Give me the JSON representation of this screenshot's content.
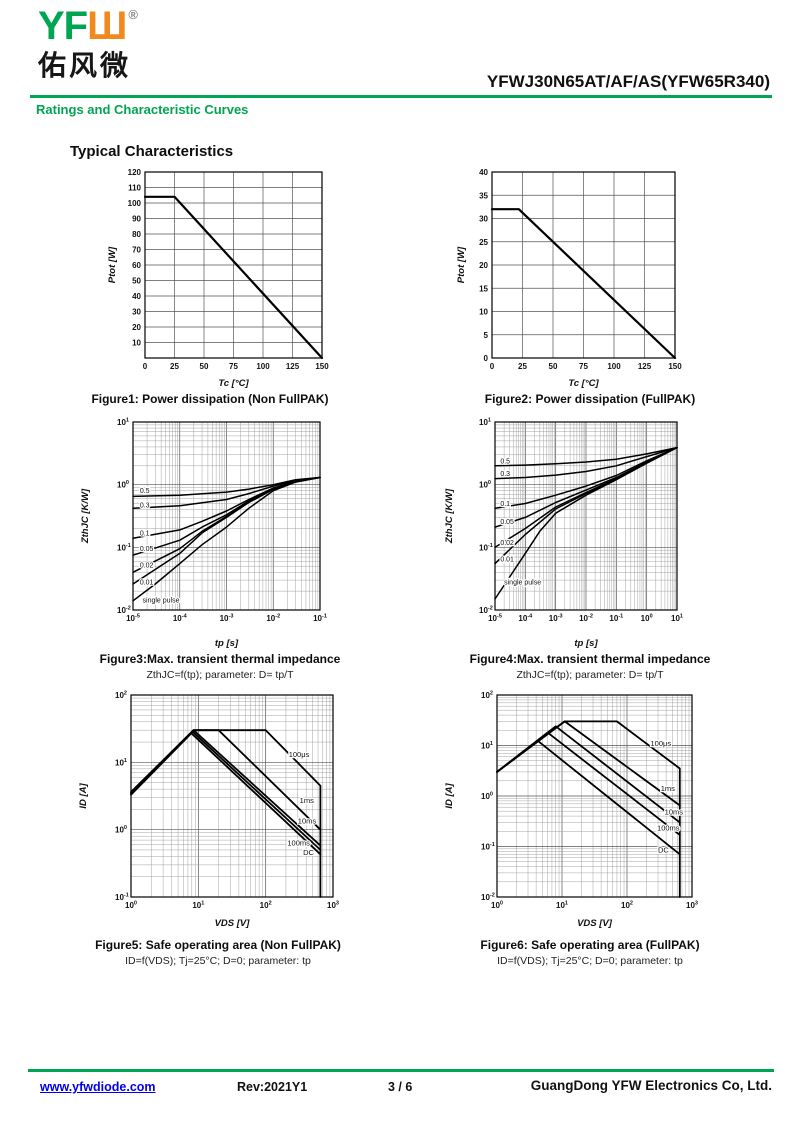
{
  "header": {
    "logo_green": "YF",
    "logo_orange": "Ш",
    "registered_mark": "®",
    "logo_chinese": "佑风微",
    "part_number": "YFWJ30N65AT/AF/AS(YFW65R340)",
    "section": "Ratings and Characteristic Curves"
  },
  "page_heading": "Typical Characteristics",
  "colors": {
    "green": "#00A551",
    "orange": "#F08A1E",
    "link_blue": "#0000EE",
    "curve": "#000000"
  },
  "footer": {
    "website": "www.yfwdiode.com",
    "revision": "Rev:2021Y1",
    "page": "3 / 6",
    "company": "GuangDong YFW Electronics Co, Ltd."
  },
  "chart_data": [
    {
      "type": "line",
      "caption": "Figure1: Power dissipation (Non FullPAK)",
      "x": {
        "scale": "linear",
        "label": "Tc [°C]",
        "min": 0,
        "max": 150,
        "ticks": [
          0,
          25,
          50,
          75,
          100,
          125,
          150
        ]
      },
      "y": {
        "scale": "linear",
        "label": "Ptot [W]",
        "min": 0,
        "max": 120,
        "ticks": [
          10,
          20,
          30,
          40,
          50,
          60,
          70,
          80,
          90,
          100,
          110,
          120
        ]
      },
      "series": [
        {
          "name": "Ptot",
          "points": [
            [
              0,
              104
            ],
            [
              25,
              104
            ],
            [
              150,
              0
            ]
          ]
        }
      ],
      "annotations": []
    },
    {
      "type": "line",
      "caption": "Figure2: Power dissipation (FullPAK)",
      "x": {
        "scale": "linear",
        "label": "Tc [°C]",
        "min": 0,
        "max": 150,
        "ticks": [
          0,
          25,
          50,
          75,
          100,
          125,
          150
        ]
      },
      "y": {
        "scale": "linear",
        "label": "Ptot [W]",
        "min": 0,
        "max": 40,
        "ticks": [
          0,
          5,
          10,
          15,
          20,
          25,
          30,
          35,
          40
        ]
      },
      "series": [
        {
          "name": "Ptot",
          "points": [
            [
              0,
              32
            ],
            [
              22,
              32
            ],
            [
              150,
              0
            ]
          ]
        }
      ],
      "annotations": []
    },
    {
      "type": "line",
      "caption": "Figure3:Max. transient thermal impedance",
      "subtitle": "ZthJC=f(tp); parameter: D= tp/T",
      "x": {
        "scale": "log",
        "label": "tp [s]",
        "min_exp": -5,
        "max_exp": -1
      },
      "y": {
        "scale": "log",
        "label": "ZthJC [K/W]",
        "min_exp": -2,
        "max_exp": 1
      },
      "series": [
        {
          "name": "0.5",
          "points": [
            [
              1e-05,
              0.65
            ],
            [
              0.0001,
              0.68
            ],
            [
              0.001,
              0.76
            ],
            [
              0.003,
              0.85
            ],
            [
              0.01,
              1.0
            ],
            [
              0.03,
              1.2
            ],
            [
              0.1,
              1.3
            ]
          ]
        },
        {
          "name": "0.3",
          "points": [
            [
              1e-05,
              0.42
            ],
            [
              0.0001,
              0.46
            ],
            [
              0.001,
              0.58
            ],
            [
              0.003,
              0.72
            ],
            [
              0.01,
              0.95
            ],
            [
              0.03,
              1.18
            ],
            [
              0.1,
              1.3
            ]
          ]
        },
        {
          "name": "0.1",
          "points": [
            [
              1e-05,
              0.14
            ],
            [
              0.0001,
              0.19
            ],
            [
              0.0003,
              0.26
            ],
            [
              0.001,
              0.38
            ],
            [
              0.003,
              0.58
            ],
            [
              0.01,
              0.88
            ],
            [
              0.03,
              1.15
            ],
            [
              0.1,
              1.3
            ]
          ]
        },
        {
          "name": "0.05",
          "points": [
            [
              1e-05,
              0.075
            ],
            [
              0.0001,
              0.13
            ],
            [
              0.0003,
              0.21
            ],
            [
              0.001,
              0.33
            ],
            [
              0.003,
              0.55
            ],
            [
              0.01,
              0.86
            ],
            [
              0.03,
              1.15
            ],
            [
              0.1,
              1.3
            ]
          ]
        },
        {
          "name": "0.02",
          "points": [
            [
              1e-05,
              0.04
            ],
            [
              0.0001,
              0.095
            ],
            [
              0.0003,
              0.18
            ],
            [
              0.001,
              0.31
            ],
            [
              0.003,
              0.53
            ],
            [
              0.01,
              0.85
            ],
            [
              0.03,
              1.14
            ],
            [
              0.1,
              1.3
            ]
          ]
        },
        {
          "name": "0.01",
          "points": [
            [
              1e-05,
              0.026
            ],
            [
              0.0001,
              0.08
            ],
            [
              0.0003,
              0.17
            ],
            [
              0.001,
              0.3
            ],
            [
              0.003,
              0.52
            ],
            [
              0.01,
              0.84
            ],
            [
              0.03,
              1.14
            ],
            [
              0.1,
              1.3
            ]
          ]
        },
        {
          "name": "single pulse",
          "points": [
            [
              1e-05,
              0.014
            ],
            [
              3e-05,
              0.026
            ],
            [
              0.0001,
              0.055
            ],
            [
              0.0003,
              0.11
            ],
            [
              0.001,
              0.21
            ],
            [
              0.003,
              0.42
            ],
            [
              0.01,
              0.8
            ],
            [
              0.03,
              1.1
            ],
            [
              0.1,
              1.3
            ]
          ]
        }
      ],
      "annotations": [
        {
          "text": "0.5",
          "x": 1.4e-05,
          "y": 0.8
        },
        {
          "text": "0.3",
          "x": 1.4e-05,
          "y": 0.47
        },
        {
          "text": "0.1",
          "x": 1.4e-05,
          "y": 0.17
        },
        {
          "text": "0.05",
          "x": 1.4e-05,
          "y": 0.095
        },
        {
          "text": "0.02",
          "x": 1.4e-05,
          "y": 0.052
        },
        {
          "text": "0.01",
          "x": 1.4e-05,
          "y": 0.028
        },
        {
          "text": "single pulse",
          "x": 1.6e-05,
          "y": 0.0145
        }
      ]
    },
    {
      "type": "line",
      "caption": "Figure4:Max. transient thermal impedance",
      "subtitle": "ZthJC=f(tp); parameter: D= tp/T",
      "x": {
        "scale": "log",
        "label": "tp [s]",
        "min_exp": -5,
        "max_exp": 1
      },
      "y": {
        "scale": "log",
        "label": "ZthJC [K/W]",
        "min_exp": -2,
        "max_exp": 1
      },
      "series": [
        {
          "name": "0.5",
          "points": [
            [
              1e-05,
              2.0
            ],
            [
              0.0001,
              2.05
            ],
            [
              0.001,
              2.15
            ],
            [
              0.01,
              2.3
            ],
            [
              0.1,
              2.55
            ],
            [
              1,
              3.1
            ],
            [
              10,
              3.9
            ]
          ]
        },
        {
          "name": "0.3",
          "points": [
            [
              1e-05,
              1.25
            ],
            [
              0.0001,
              1.3
            ],
            [
              0.001,
              1.42
            ],
            [
              0.01,
              1.62
            ],
            [
              0.1,
              2.0
            ],
            [
              1,
              2.8
            ],
            [
              10,
              3.9
            ]
          ]
        },
        {
          "name": "0.1",
          "points": [
            [
              1e-05,
              0.42
            ],
            [
              0.0001,
              0.5
            ],
            [
              0.001,
              0.68
            ],
            [
              0.01,
              0.95
            ],
            [
              0.1,
              1.4
            ],
            [
              1,
              2.4
            ],
            [
              10,
              3.9
            ]
          ]
        },
        {
          "name": "0.05",
          "points": [
            [
              1e-05,
              0.21
            ],
            [
              0.0001,
              0.3
            ],
            [
              0.001,
              0.52
            ],
            [
              0.01,
              0.82
            ],
            [
              0.1,
              1.3
            ],
            [
              1,
              2.3
            ],
            [
              10,
              3.9
            ]
          ]
        },
        {
          "name": "0.02",
          "points": [
            [
              1e-05,
              0.1
            ],
            [
              0.0001,
              0.2
            ],
            [
              0.001,
              0.44
            ],
            [
              0.01,
              0.75
            ],
            [
              0.1,
              1.25
            ],
            [
              1,
              2.25
            ],
            [
              10,
              3.9
            ]
          ]
        },
        {
          "name": "0.01",
          "points": [
            [
              1e-05,
              0.055
            ],
            [
              0.0001,
              0.16
            ],
            [
              0.001,
              0.41
            ],
            [
              0.01,
              0.72
            ],
            [
              0.1,
              1.22
            ],
            [
              1,
              2.22
            ],
            [
              10,
              3.9
            ]
          ]
        },
        {
          "name": "single pulse",
          "points": [
            [
              1e-05,
              0.015
            ],
            [
              0.0001,
              0.08
            ],
            [
              0.0003,
              0.18
            ],
            [
              0.001,
              0.35
            ],
            [
              0.01,
              0.68
            ],
            [
              0.1,
              1.2
            ],
            [
              1,
              2.2
            ],
            [
              10,
              3.9
            ]
          ]
        }
      ],
      "annotations": [
        {
          "text": "0.5",
          "x": 1.5e-05,
          "y": 2.4
        },
        {
          "text": "0.3",
          "x": 1.5e-05,
          "y": 1.5
        },
        {
          "text": "0.1",
          "x": 1.5e-05,
          "y": 0.5
        },
        {
          "text": "0.05",
          "x": 1.5e-05,
          "y": 0.26
        },
        {
          "text": "0.02",
          "x": 1.5e-05,
          "y": 0.12
        },
        {
          "text": "0.01",
          "x": 1.5e-05,
          "y": 0.065
        },
        {
          "text": "single pulse",
          "x": 2e-05,
          "y": 0.028
        }
      ]
    },
    {
      "type": "line",
      "caption": "Figure5: Safe operating area (Non FullPAK)",
      "subtitle": "ID=f(VDS); Tj=25°C; D=0; parameter: tp",
      "x": {
        "scale": "log",
        "label": "VDS [V]",
        "min_exp": 0,
        "max_exp": 3
      },
      "y": {
        "scale": "log",
        "label": "ID [A]",
        "min_exp": -1,
        "max_exp": 2
      },
      "series": [
        {
          "name": "100μs",
          "points": [
            [
              1,
              3.6
            ],
            [
              8.5,
              30
            ],
            [
              100,
              30
            ],
            [
              650,
              4.5
            ],
            [
              650,
              0.1
            ]
          ]
        },
        {
          "name": "1ms",
          "points": [
            [
              1,
              3.6
            ],
            [
              8.5,
              30
            ],
            [
              20,
              30
            ],
            [
              650,
              1.0
            ]
          ]
        },
        {
          "name": "10ms",
          "points": [
            [
              1,
              3.6
            ],
            [
              8.5,
              30
            ],
            [
              650,
              0.58
            ]
          ]
        },
        {
          "name": "100ms",
          "points": [
            [
              1,
              3.45
            ],
            [
              8.2,
              28.5
            ],
            [
              650,
              0.5
            ]
          ]
        },
        {
          "name": "DC",
          "points": [
            [
              1,
              3.3
            ],
            [
              7.9,
              27
            ],
            [
              650,
              0.43
            ]
          ]
        }
      ],
      "annotations": [
        {
          "text": "100μs",
          "x": 220,
          "y": 13
        },
        {
          "text": "1ms",
          "x": 320,
          "y": 2.7
        },
        {
          "text": "10ms",
          "x": 300,
          "y": 1.35
        },
        {
          "text": "100ms",
          "x": 210,
          "y": 0.63
        },
        {
          "text": "DC",
          "x": 360,
          "y": 0.46
        }
      ]
    },
    {
      "type": "line",
      "caption": "Figure6: Safe operating area (FullPAK)",
      "subtitle": "ID=f(VDS); Tj=25°C; D=0; parameter: tp",
      "x": {
        "scale": "log",
        "label": "VDS [V]",
        "min_exp": 0,
        "max_exp": 3
      },
      "y": {
        "scale": "log",
        "label": "ID [A]",
        "min_exp": -2,
        "max_exp": 2
      },
      "series": [
        {
          "name": "100μs",
          "points": [
            [
              1,
              3.0
            ],
            [
              11,
              30
            ],
            [
              70,
              30
            ],
            [
              650,
              3.5
            ],
            [
              650,
              0.01
            ]
          ]
        },
        {
          "name": "1ms",
          "points": [
            [
              1,
              3.0
            ],
            [
              11,
              30
            ],
            [
              650,
              0.65
            ]
          ]
        },
        {
          "name": "10ms",
          "points": [
            [
              1,
              3.0
            ],
            [
              8,
              24
            ],
            [
              650,
              0.3
            ]
          ]
        },
        {
          "name": "100ms",
          "points": [
            [
              1,
              3.0
            ],
            [
              6,
              18
            ],
            [
              650,
              0.17
            ]
          ]
        },
        {
          "name": "DC",
          "points": [
            [
              1,
              3.0
            ],
            [
              4.2,
              12.5
            ],
            [
              650,
              0.07
            ]
          ]
        }
      ],
      "annotations": [
        {
          "text": "100μs",
          "x": 230,
          "y": 11
        },
        {
          "text": "1ms",
          "x": 330,
          "y": 1.4
        },
        {
          "text": "10ms",
          "x": 380,
          "y": 0.48
        },
        {
          "text": "100ms",
          "x": 290,
          "y": 0.23
        },
        {
          "text": "DC",
          "x": 300,
          "y": 0.085
        }
      ]
    }
  ]
}
